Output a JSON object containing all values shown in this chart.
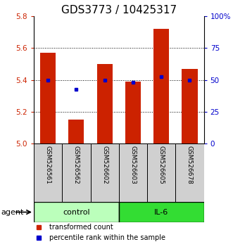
{
  "title": "GDS3773 / 10425317",
  "samples": [
    "GSM526561",
    "GSM526562",
    "GSM526602",
    "GSM526603",
    "GSM526605",
    "GSM526678"
  ],
  "bar_values": [
    5.57,
    5.15,
    5.5,
    5.39,
    5.72,
    5.47
  ],
  "percentile_values": [
    5.4,
    5.34,
    5.4,
    5.385,
    5.42,
    5.4
  ],
  "ylim": [
    5.0,
    5.8
  ],
  "yticks_left": [
    5.0,
    5.2,
    5.4,
    5.6,
    5.8
  ],
  "yticks_right_vals": [
    5.0,
    5.2,
    5.4,
    5.6,
    5.8
  ],
  "yticks_right_labels": [
    "0",
    "25",
    "50",
    "75",
    "100%"
  ],
  "bar_color": "#cc2200",
  "blue_color": "#0000cc",
  "bar_width": 0.55,
  "groups": [
    {
      "label": "control",
      "indices": [
        0,
        1,
        2
      ],
      "color": "#bbffbb"
    },
    {
      "label": "IL-6",
      "indices": [
        3,
        4,
        5
      ],
      "color": "#33dd33"
    }
  ],
  "agent_label": "agent",
  "legend_items": [
    {
      "label": "transformed count",
      "color": "#cc2200"
    },
    {
      "label": "percentile rank within the sample",
      "color": "#0000cc"
    }
  ],
  "title_fontsize": 11,
  "tick_fontsize": 7.5,
  "sample_fontsize": 6.5,
  "legend_fontsize": 7,
  "group_fontsize": 8
}
